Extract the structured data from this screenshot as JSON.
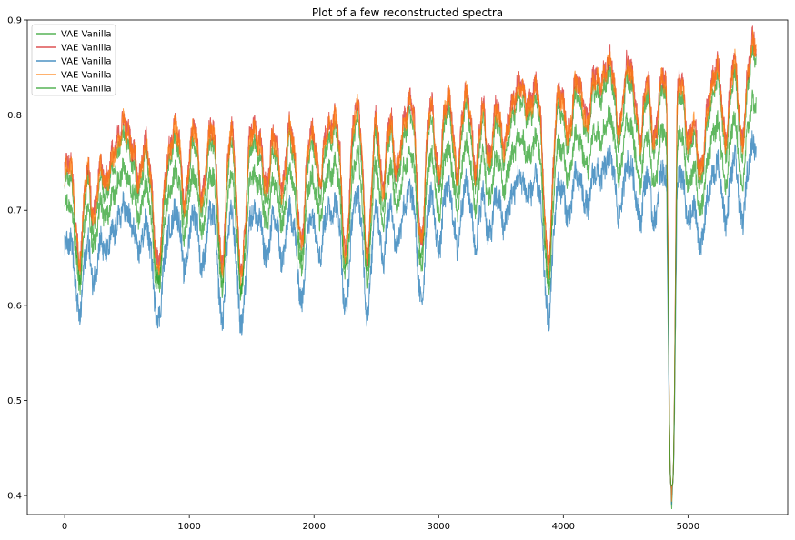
{
  "chart_data": {
    "type": "line",
    "title": "Plot of a few reconstructed spectra",
    "xlabel": "",
    "ylabel": "",
    "xlim": [
      -300,
      5800
    ],
    "ylim": [
      0.38,
      0.9
    ],
    "xticks": [
      0,
      1000,
      2000,
      3000,
      4000,
      5000
    ],
    "xtick_labels": [
      "0",
      "1000",
      "2000",
      "3000",
      "4000",
      "5000"
    ],
    "yticks": [
      0.4,
      0.5,
      0.6,
      0.7,
      0.8,
      0.9
    ],
    "ytick_labels": [
      "0.4",
      "0.5",
      "0.6",
      "0.7",
      "0.8",
      "0.9"
    ],
    "grid": false,
    "legend_position": "top-left",
    "n_points": 5548,
    "series": [
      {
        "name": "VAE Vanilla",
        "color": "#2ca02c",
        "offset": -0.012,
        "scale": 1.0,
        "noise": 0.009
      },
      {
        "name": "VAE Vanilla",
        "color": "#d62728",
        "offset": 0.004,
        "scale": 1.0,
        "noise": 0.012
      },
      {
        "name": "VAE Vanilla",
        "color": "#1f77b4",
        "offset": -0.085,
        "scale": 0.78,
        "noise": 0.014
      },
      {
        "name": "VAE Vanilla",
        "color": "#ff7f0e",
        "offset": 0.0,
        "scale": 1.0,
        "noise": 0.012
      },
      {
        "name": "VAE Vanilla",
        "color": "#2ca02c",
        "offset": -0.045,
        "scale": 0.82,
        "noise": 0.011
      }
    ],
    "baseline_envelope": {
      "x": [
        0,
        500,
        1000,
        1500,
        2000,
        2500,
        3000,
        3500,
        4000,
        4350,
        4800,
        5100,
        5548
      ],
      "y": [
        0.735,
        0.78,
        0.775,
        0.785,
        0.795,
        0.8,
        0.805,
        0.815,
        0.825,
        0.845,
        0.83,
        0.825,
        0.865
      ]
    },
    "absorption_dips": [
      {
        "x": 120,
        "depth": 0.09,
        "width": 30
      },
      {
        "x": 230,
        "depth": 0.06,
        "width": 25
      },
      {
        "x": 330,
        "depth": 0.05,
        "width": 25
      },
      {
        "x": 600,
        "depth": 0.06,
        "width": 25
      },
      {
        "x": 750,
        "depth": 0.15,
        "width": 35
      },
      {
        "x": 960,
        "depth": 0.06,
        "width": 25
      },
      {
        "x": 1100,
        "depth": 0.06,
        "width": 25
      },
      {
        "x": 1260,
        "depth": 0.13,
        "width": 30
      },
      {
        "x": 1420,
        "depth": 0.14,
        "width": 35
      },
      {
        "x": 1620,
        "depth": 0.08,
        "width": 25
      },
      {
        "x": 1750,
        "depth": 0.08,
        "width": 25
      },
      {
        "x": 1900,
        "depth": 0.14,
        "width": 30
      },
      {
        "x": 2050,
        "depth": 0.08,
        "width": 25
      },
      {
        "x": 2250,
        "depth": 0.14,
        "width": 30
      },
      {
        "x": 2430,
        "depth": 0.14,
        "width": 30
      },
      {
        "x": 2550,
        "depth": 0.07,
        "width": 25
      },
      {
        "x": 2660,
        "depth": 0.07,
        "width": 25
      },
      {
        "x": 2860,
        "depth": 0.13,
        "width": 30
      },
      {
        "x": 3000,
        "depth": 0.06,
        "width": 25
      },
      {
        "x": 3150,
        "depth": 0.06,
        "width": 25
      },
      {
        "x": 3300,
        "depth": 0.06,
        "width": 25
      },
      {
        "x": 3400,
        "depth": 0.06,
        "width": 25
      },
      {
        "x": 3520,
        "depth": 0.06,
        "width": 25
      },
      {
        "x": 3880,
        "depth": 0.17,
        "width": 35
      },
      {
        "x": 4050,
        "depth": 0.05,
        "width": 25
      },
      {
        "x": 4200,
        "depth": 0.05,
        "width": 25
      },
      {
        "x": 4450,
        "depth": 0.05,
        "width": 25
      },
      {
        "x": 4620,
        "depth": 0.06,
        "width": 25
      },
      {
        "x": 4730,
        "depth": 0.05,
        "width": 25
      },
      {
        "x": 4870,
        "depth": 0.42,
        "width": 18
      },
      {
        "x": 5000,
        "depth": 0.05,
        "width": 25
      },
      {
        "x": 5100,
        "depth": 0.1,
        "width": 30
      },
      {
        "x": 5300,
        "depth": 0.06,
        "width": 25
      },
      {
        "x": 5430,
        "depth": 0.08,
        "width": 25
      }
    ]
  }
}
